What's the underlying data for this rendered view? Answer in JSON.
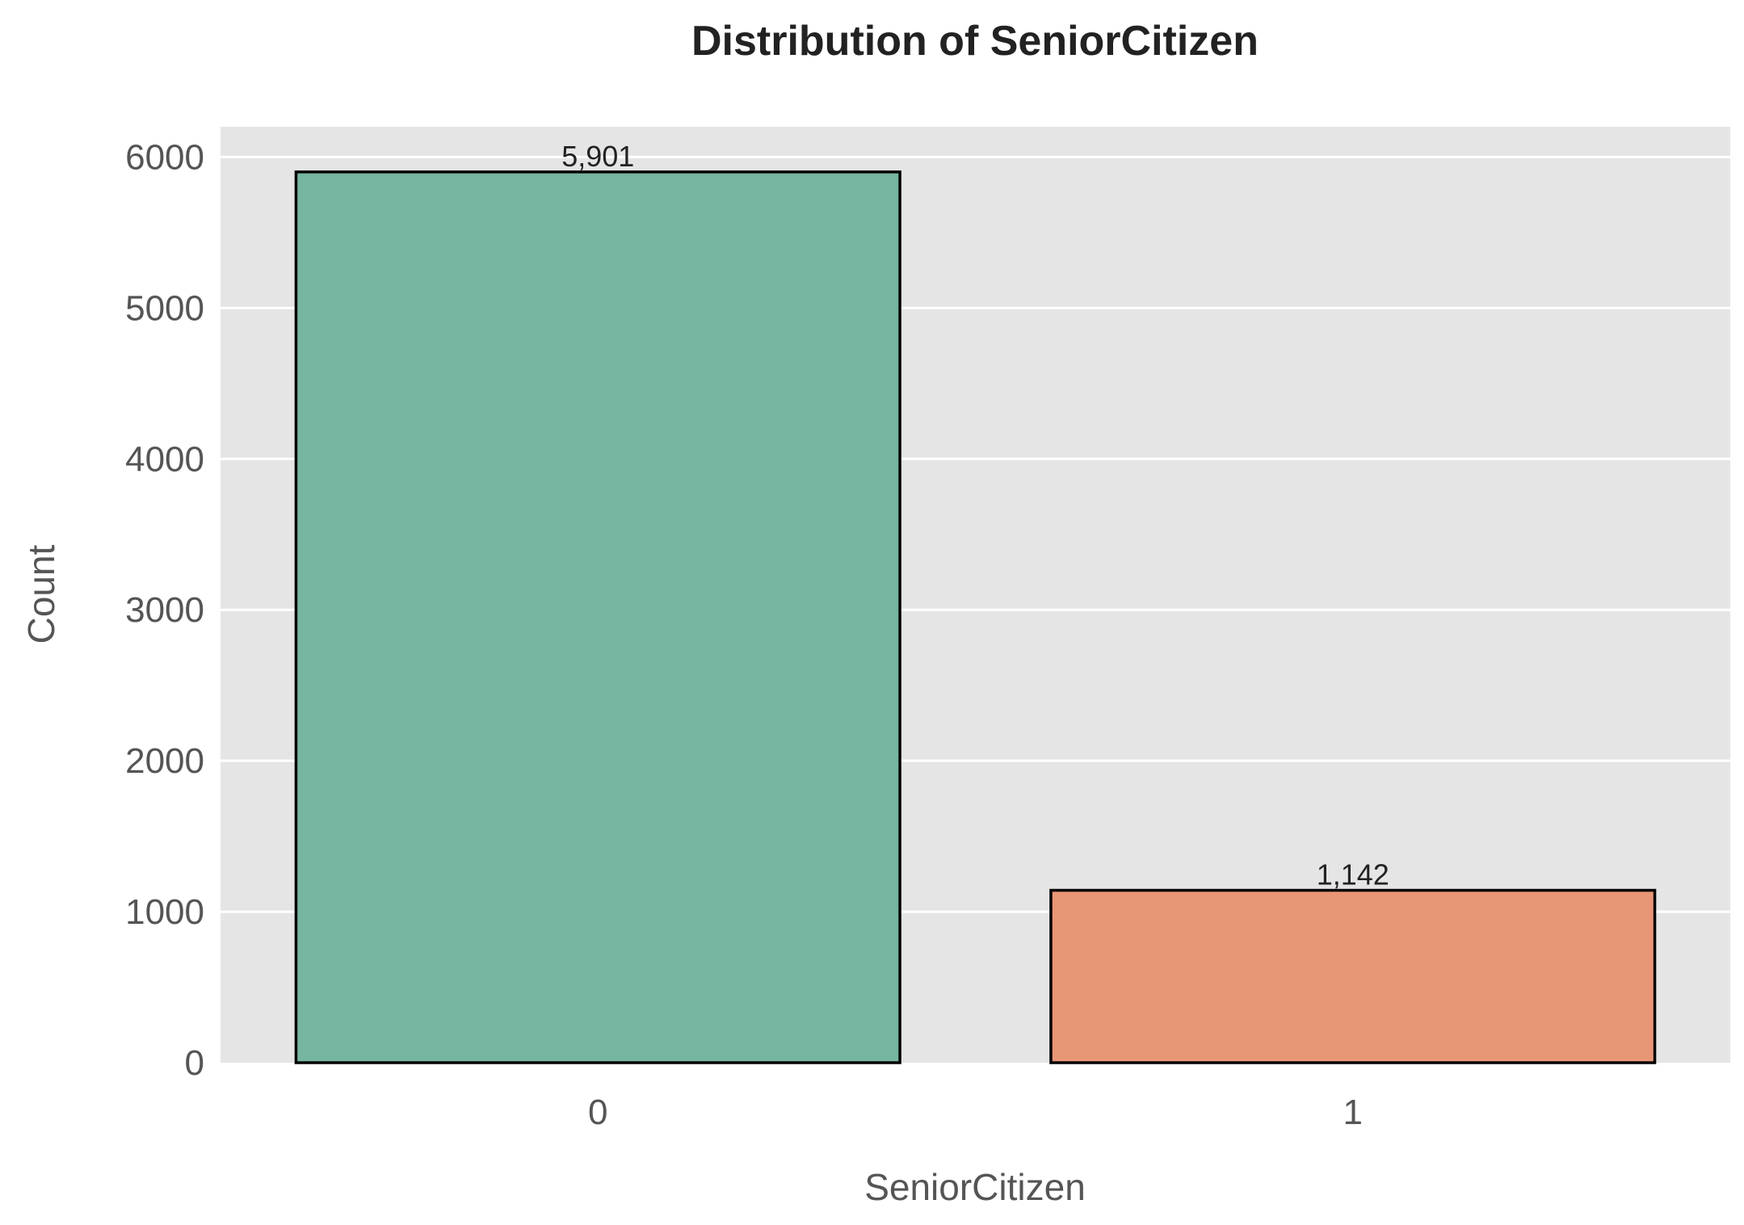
{
  "chart_data": {
    "type": "bar",
    "title": "Distribution of SeniorCitizen",
    "xlabel": "SeniorCitizen",
    "ylabel": "Count",
    "categories": [
      "0",
      "1"
    ],
    "values": [
      5901,
      1142
    ],
    "value_labels": [
      "5,901",
      "1,142"
    ],
    "colors": [
      "#76b5a0",
      "#e89776"
    ],
    "plot_background": "#e5e5e5",
    "ylim": [
      0,
      6200
    ],
    "yticks": [
      0,
      1000,
      2000,
      3000,
      4000,
      5000,
      6000
    ],
    "grid": true,
    "legend": "none"
  }
}
